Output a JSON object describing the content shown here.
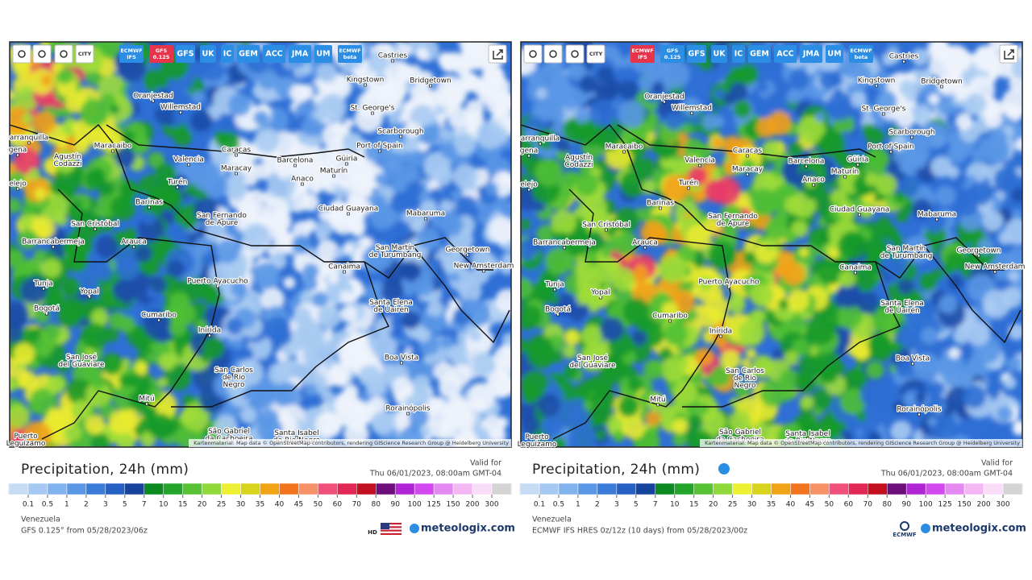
{
  "panels": [
    {
      "icon_text": "CITY",
      "toolbar": [
        "ECMWF IFS",
        "GFS 0.125",
        "GFS",
        "UK",
        "IC",
        "GEM",
        "ACC",
        "JMA",
        "UM",
        "ECMWF beta"
      ],
      "cities": [
        "Castries",
        "Kingstown",
        "Bridgetown",
        "Oranjestad",
        "Willemstad",
        "St. George's",
        "Scarborough",
        "Port of Spain",
        "Maracaibo",
        "Caracas",
        "Barcelona",
        "Güiria",
        "Valencia",
        "Maracay",
        "Maturín",
        "Anaco",
        "Agustín\nCodazzi",
        "Turén",
        "Barinas",
        "Ciudad Guayana",
        "Mabaruma",
        "San Cristóbal",
        "San Fernando\nde Apure",
        "Arauca",
        "Barrancabermeja",
        "San Martín\nde Turumbang",
        "Georgetown",
        "New Amsterdam",
        "Canaima",
        "Puerto Ayacucho",
        "Tunja",
        "Yopal",
        "Bogotá",
        "Cumaribo",
        "Santa Elena\nde Uairén",
        "Inírida",
        "Boa Vista",
        "San José\ndel Guaviare",
        "San Carlos\nde Río\nNegro",
        "Mitú",
        "Rorainópolis",
        "São Gabriel\nda Cachoeira",
        "Santa Isabel\ndo Rio Negro",
        "Puerto\nLeguízamo",
        "arranquilla",
        "gena",
        "elejo"
      ],
      "attribution": "Kartenmaterial: Map data © OpenStreetMap contributors, rendering GIScience Research Group @ Heidelberg University",
      "title": "Precipitation, 24h (mm)",
      "valid_label": "Valid for",
      "valid_time": "Thu 06/01/2023, 08:00am GMT-04",
      "legend": [
        0.1,
        0.5,
        1,
        2,
        3,
        5,
        7,
        10,
        15,
        20,
        25,
        30,
        35,
        40,
        45,
        50,
        60,
        70,
        80,
        90,
        100,
        125,
        150,
        200,
        300
      ],
      "region": "Venezuela",
      "source": "GFS 0.125° from 05/28/2023/06z",
      "logo_text": "HD",
      "brand": "meteologix.com"
    },
    {
      "icon_text": "CITY",
      "toolbar": [
        "ECMWF IFS",
        "GFS 0.125",
        "GFS",
        "UK",
        "IC",
        "GEM",
        "ACC",
        "JMA",
        "UM",
        "ECMWF beta"
      ],
      "cities": [
        "Castries",
        "Kingstown",
        "Bridgetown",
        "Oranjestad",
        "Willemstad",
        "St. George's",
        "Scarborough",
        "Port of Spain",
        "Maracaibo",
        "Caracas",
        "Barcelona",
        "Güiria",
        "Valencia",
        "Maracay",
        "Maturín",
        "Anaco",
        "Agustín\nCodazzi",
        "Turén",
        "Barinas",
        "Ciudad Guayana",
        "Mabaruma",
        "San Cristóbal",
        "San Fernando\nde Apure",
        "Arauca",
        "Barrancabermeja",
        "San Martín\nde Turumbang",
        "Georgetown",
        "New Amsterdam",
        "Canaima",
        "Puerto Ayacucho",
        "Tunja",
        "Yopal",
        "Bogotá",
        "Cumaribo",
        "Santa Elena\nde Uairén",
        "Inírida",
        "Boa Vista",
        "San José\ndel Guaviare",
        "San Carlos\nde Río\nNegro",
        "Mitú",
        "Rorainópolis",
        "São Gabriel\nda Cachoeira",
        "Santa Isabel\ndo Rio Negro",
        "Puerto\nLeguízamo",
        "arranquilla",
        "gena",
        "elejo"
      ],
      "attribution": "Kartenmaterial: Map data © OpenStreetMap contributors, rendering GIScience Research Group @ Heidelberg University",
      "title": "Precipitation, 24h (mm)",
      "valid_label": "Valid for",
      "valid_time": "Thu 06/01/2023, 08:00am GMT-04",
      "legend": [
        0.1,
        0.5,
        1,
        2,
        3,
        5,
        7,
        10,
        15,
        20,
        25,
        30,
        35,
        40,
        45,
        50,
        60,
        70,
        80,
        90,
        100,
        125,
        150,
        200,
        300
      ],
      "region": "Venezuela",
      "source": "ECMWF IFS HRES 0z/12z (10 days) from 05/28/2023/00z",
      "logo_text": "ECMWF",
      "brand": "meteologix.com"
    }
  ]
}
